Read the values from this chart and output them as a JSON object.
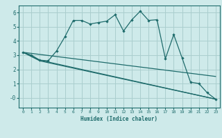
{
  "xlabel": "Humidex (Indice chaleur)",
  "background_color": "#ceeaea",
  "grid_color": "#aacece",
  "line_color": "#1e6b6b",
  "xlim": [
    -0.5,
    23.5
  ],
  "ylim": [
    -0.7,
    6.5
  ],
  "xticks": [
    0,
    1,
    2,
    3,
    4,
    5,
    6,
    7,
    8,
    9,
    10,
    11,
    12,
    13,
    14,
    15,
    16,
    17,
    18,
    19,
    20,
    21,
    22,
    23
  ],
  "yticks": [
    0,
    1,
    2,
    3,
    4,
    5,
    6
  ],
  "ytick_labels": [
    "-0",
    "1",
    "2",
    "3",
    "4",
    "5",
    "6"
  ],
  "series1_x": [
    0,
    1,
    2,
    3,
    4,
    5,
    6,
    7,
    8,
    9,
    10,
    11,
    12,
    13,
    14,
    15,
    16,
    17,
    18,
    19,
    20,
    21,
    22,
    23
  ],
  "series1_y": [
    3.2,
    3.0,
    2.65,
    2.6,
    3.3,
    4.3,
    5.45,
    5.45,
    5.2,
    5.3,
    5.4,
    5.85,
    4.7,
    5.5,
    6.1,
    5.45,
    5.5,
    2.75,
    4.45,
    2.8,
    1.1,
    1.0,
    0.35,
    -0.1
  ],
  "series2_x": [
    0,
    2,
    23
  ],
  "series2_y": [
    3.2,
    2.65,
    -0.1
  ],
  "series3_x": [
    0,
    2,
    23
  ],
  "series3_y": [
    3.2,
    2.6,
    -0.1
  ],
  "series4_x": [
    0,
    23
  ],
  "series4_y": [
    3.2,
    1.5
  ]
}
